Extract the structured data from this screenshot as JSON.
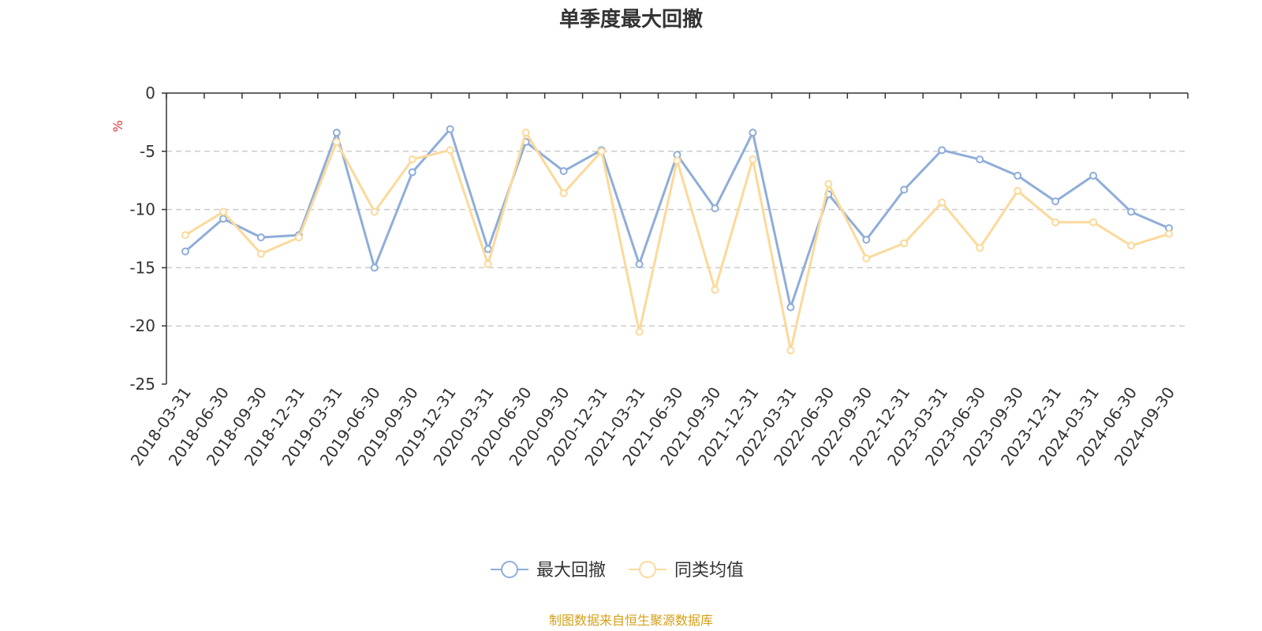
{
  "chart_data": {
    "type": "line",
    "title": "单季度最大回撤",
    "ylabel": "%",
    "ylim": [
      -25,
      0
    ],
    "yticks": [
      0,
      -5,
      -10,
      -15,
      -20,
      -25
    ],
    "grid": "horizontal-dashed",
    "legend_position": "bottom-center",
    "categories": [
      "2018-03-31",
      "2018-06-30",
      "2018-09-30",
      "2018-12-31",
      "2019-03-31",
      "2019-06-30",
      "2019-09-30",
      "2019-12-31",
      "2020-03-31",
      "2020-06-30",
      "2020-09-30",
      "2020-12-31",
      "2021-03-31",
      "2021-06-30",
      "2021-09-30",
      "2021-12-31",
      "2022-03-31",
      "2022-06-30",
      "2022-09-30",
      "2022-12-31",
      "2023-03-31",
      "2023-06-30",
      "2023-09-30",
      "2023-12-31",
      "2024-03-31",
      "2024-06-30",
      "2024-09-30"
    ],
    "series": [
      {
        "name": "最大回撤",
        "color": "#8fadd9",
        "values": [
          -13.6,
          -10.8,
          -12.4,
          -12.2,
          -3.4,
          -15.0,
          -6.8,
          -3.1,
          -13.4,
          -4.2,
          -6.7,
          -4.9,
          -14.7,
          -5.3,
          -9.9,
          -3.4,
          -18.4,
          -8.7,
          -12.6,
          -8.3,
          -4.9,
          -5.7,
          -7.1,
          -9.3,
          -7.1,
          -10.2,
          -11.6
        ]
      },
      {
        "name": "同类均值",
        "color": "#fcd99a",
        "values": [
          -12.2,
          -10.2,
          -13.8,
          -12.4,
          -4.2,
          -10.2,
          -5.7,
          -4.9,
          -14.7,
          -3.4,
          -8.6,
          -5.0,
          -20.5,
          -5.8,
          -16.9,
          -5.7,
          -22.1,
          -7.8,
          -14.2,
          -12.9,
          -9.4,
          -13.3,
          -8.4,
          -11.1,
          -11.1,
          -13.1,
          -12.1
        ]
      }
    ],
    "source": "制图数据来自恒生聚源数据库",
    "colors": {
      "axis": "#333333",
      "grid": "#cccccc",
      "unit": "#e03030",
      "source": "#d4a017"
    }
  }
}
